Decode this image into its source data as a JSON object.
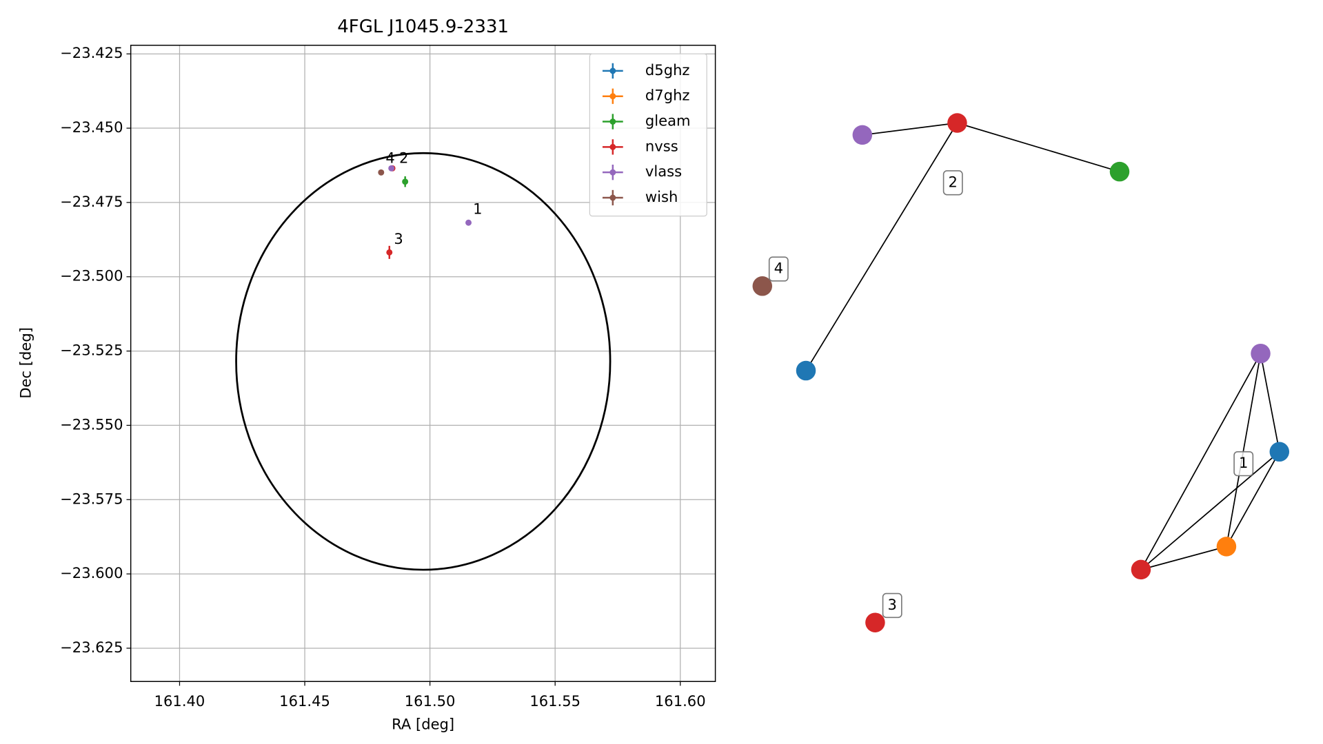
{
  "chart_data": [
    {
      "type": "scatter",
      "title": "4FGL J1045.9-2331",
      "x_label": "RA [deg]",
      "y_label": "Dec [deg]",
      "xlim": [
        161.3805,
        161.614
      ],
      "ylim": [
        -23.6362,
        -23.4221
      ],
      "xticks": [
        {
          "value": 161.4,
          "label": "161.40"
        },
        161.45,
        {
          "value": 161.5,
          "label": "161.50"
        },
        161.55,
        {
          "value": 161.6,
          "label": "161.60"
        }
      ],
      "yticks": [
        {
          "value": -23.425,
          "label": "−23.425"
        },
        {
          "value": -23.45,
          "label": "−23.450"
        },
        {
          "value": -23.475,
          "label": "−23.475"
        },
        {
          "value": -23.5,
          "label": "−23.500"
        },
        {
          "value": -23.525,
          "label": "−23.525"
        },
        {
          "value": -23.55,
          "label": "−23.550"
        },
        {
          "value": -23.575,
          "label": "−23.575"
        },
        {
          "value": -23.6,
          "label": "−23.600"
        },
        {
          "value": -23.625,
          "label": "−23.625"
        }
      ],
      "grid": true,
      "legend": "upper right",
      "series": [
        {
          "name": "d5ghz",
          "color": "#1f77b4",
          "x": [],
          "values": [],
          "yerr": []
        },
        {
          "name": "d7ghz",
          "color": "#ff7f0e",
          "x": [],
          "values": [],
          "yerr": []
        },
        {
          "name": "gleam",
          "color": "#2ca02c",
          "x": [
            161.4901
          ],
          "values": [
            -23.468
          ],
          "yerr": [
            0.0018
          ]
        },
        {
          "name": "nvss",
          "color": "#d62728",
          "x": [
            161.485,
            161.4838
          ],
          "values": [
            -23.4635,
            -23.4918
          ],
          "yerr": [
            0.0005,
            0.0022
          ]
        },
        {
          "name": "vlass",
          "color": "#9467bd",
          "x": [
            161.4846,
            161.5154
          ],
          "values": [
            -23.4635,
            -23.4818
          ],
          "yerr": [
            0.0004,
            0.0004
          ]
        },
        {
          "name": "wish",
          "color": "#8c564b",
          "x": [
            161.4805
          ],
          "values": [
            -23.4649
          ],
          "yerr": [
            0.0005
          ]
        }
      ],
      "region": {
        "ra": 161.4973,
        "dec": -23.5285,
        "a": 0.0747,
        "b": 0.0701,
        "color": "#000000"
      },
      "annotations": [
        {
          "text": "4",
          "x": 161.4823,
          "y": -23.4603
        },
        {
          "text": "2",
          "x": 161.4877,
          "y": -23.4603
        },
        {
          "text": "1",
          "x": 161.5172,
          "y": -23.4775
        },
        {
          "text": "3",
          "x": 161.4856,
          "y": -23.4875
        }
      ]
    },
    {
      "type": "network",
      "nodes": [
        {
          "color": "#9467bd"
        },
        {
          "color": "#d62728"
        },
        {
          "color": "#2ca02c"
        },
        {
          "color": "#1f77b4"
        },
        {
          "color": "#8c564b"
        },
        {
          "color": "#d62728"
        },
        {
          "color": "#9467bd"
        },
        {
          "color": "#1f77b4"
        },
        {
          "color": "#ff7f0e"
        },
        {
          "color": "#d62728"
        }
      ],
      "edges": [
        [
          0,
          1
        ],
        [
          1,
          2
        ],
        [
          1,
          3
        ],
        [
          6,
          7
        ],
        [
          6,
          8
        ],
        [
          6,
          9
        ],
        [
          7,
          8
        ],
        [
          7,
          9
        ],
        [
          8,
          9
        ]
      ],
      "groups": [
        {
          "label": "2",
          "nodes": [
            0,
            1,
            2,
            3
          ]
        },
        {
          "label": "4",
          "nodes": [
            4
          ]
        },
        {
          "label": "3",
          "nodes": [
            5
          ]
        },
        {
          "label": "1",
          "nodes": [
            6,
            7,
            8,
            9
          ]
        }
      ]
    }
  ]
}
